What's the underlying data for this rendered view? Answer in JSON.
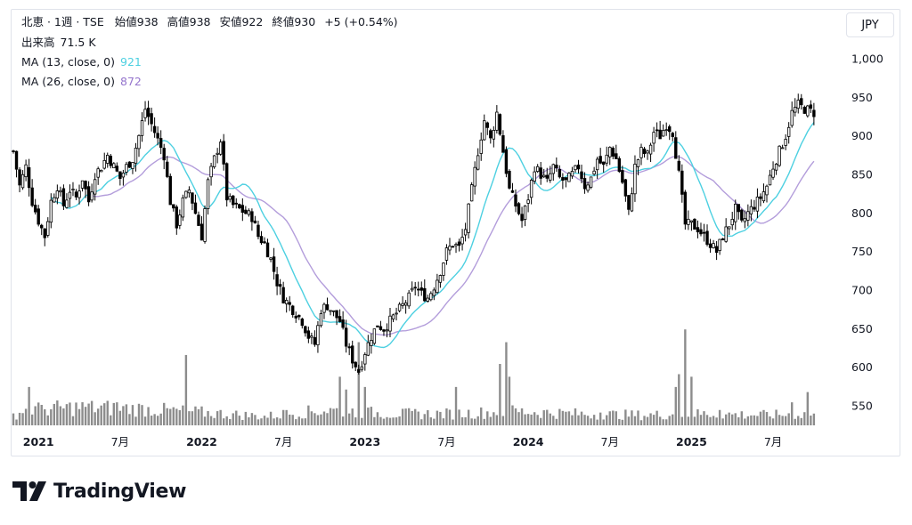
{
  "header": {
    "symbol_line": "北恵 · 1週 · TSE",
    "open_label": "始値",
    "open": "938",
    "high_label": "高値",
    "high": "938",
    "low_label": "安値",
    "low": "922",
    "close_label": "終値",
    "close": "930",
    "change": "+5 (+0.54%)",
    "volume_label": "出来高",
    "volume": "71.5 K",
    "ma1_label": "MA (13, close, 0)",
    "ma1_value": "921",
    "ma2_label": "MA (26, close, 0)",
    "ma2_value": "872"
  },
  "currency_button": "JPY",
  "brand": {
    "name": "TradingView"
  },
  "colors": {
    "up": "#ffffff",
    "down": "#000000",
    "outline": "#000000",
    "ma1": "#4dd0e1",
    "ma2": "#b39ddb",
    "volume": "#8c8c8c",
    "text": "#131722"
  },
  "chart_data": {
    "type": "candlestick",
    "timeframe": "1W",
    "yaxis": {
      "ticks": [
        "1,000",
        "950",
        "900",
        "850",
        "800",
        "750",
        "700",
        "650",
        "600",
        "550"
      ],
      "tick_values": [
        1000,
        950,
        900,
        850,
        800,
        750,
        700,
        650,
        600,
        550
      ],
      "range": [
        520,
        1010
      ]
    },
    "xaxis": {
      "ticks": [
        {
          "label": "2021",
          "bold": true,
          "index": 8
        },
        {
          "label": "7月",
          "bold": false,
          "index": 34
        },
        {
          "label": "2022",
          "bold": true,
          "index": 60
        },
        {
          "label": "7月",
          "bold": false,
          "index": 86
        },
        {
          "label": "2023",
          "bold": true,
          "index": 112
        },
        {
          "label": "7月",
          "bold": false,
          "index": 138
        },
        {
          "label": "2024",
          "bold": true,
          "index": 164
        },
        {
          "label": "7月",
          "bold": false,
          "index": 190
        },
        {
          "label": "2025",
          "bold": true,
          "index": 216
        },
        {
          "label": "7月",
          "bold": false,
          "index": 242
        }
      ]
    },
    "keypoints": [
      [
        0,
        880
      ],
      [
        2,
        835
      ],
      [
        4,
        860
      ],
      [
        6,
        815
      ],
      [
        8,
        790
      ],
      [
        10,
        770
      ],
      [
        12,
        815
      ],
      [
        14,
        835
      ],
      [
        16,
        810
      ],
      [
        18,
        830
      ],
      [
        20,
        820
      ],
      [
        22,
        845
      ],
      [
        24,
        815
      ],
      [
        26,
        850
      ],
      [
        28,
        860
      ],
      [
        30,
        875
      ],
      [
        32,
        860
      ],
      [
        34,
        845
      ],
      [
        36,
        860
      ],
      [
        38,
        870
      ],
      [
        40,
        900
      ],
      [
        42,
        935
      ],
      [
        44,
        915
      ],
      [
        46,
        895
      ],
      [
        48,
        875
      ],
      [
        50,
        815
      ],
      [
        52,
        785
      ],
      [
        54,
        815
      ],
      [
        56,
        830
      ],
      [
        58,
        800
      ],
      [
        60,
        770
      ],
      [
        62,
        840
      ],
      [
        64,
        870
      ],
      [
        66,
        895
      ],
      [
        68,
        820
      ],
      [
        70,
        810
      ],
      [
        72,
        805
      ],
      [
        74,
        800
      ],
      [
        76,
        795
      ],
      [
        78,
        770
      ],
      [
        80,
        760
      ],
      [
        82,
        740
      ],
      [
        84,
        710
      ],
      [
        86,
        690
      ],
      [
        88,
        680
      ],
      [
        90,
        670
      ],
      [
        92,
        660
      ],
      [
        94,
        640
      ],
      [
        96,
        630
      ],
      [
        98,
        675
      ],
      [
        100,
        680
      ],
      [
        102,
        670
      ],
      [
        104,
        660
      ],
      [
        106,
        630
      ],
      [
        108,
        610
      ],
      [
        110,
        595
      ],
      [
        112,
        620
      ],
      [
        114,
        640
      ],
      [
        116,
        655
      ],
      [
        118,
        650
      ],
      [
        120,
        660
      ],
      [
        122,
        670
      ],
      [
        124,
        680
      ],
      [
        126,
        690
      ],
      [
        128,
        705
      ],
      [
        130,
        695
      ],
      [
        132,
        690
      ],
      [
        134,
        705
      ],
      [
        136,
        725
      ],
      [
        138,
        750
      ],
      [
        140,
        760
      ],
      [
        142,
        755
      ],
      [
        144,
        780
      ],
      [
        146,
        830
      ],
      [
        148,
        880
      ],
      [
        150,
        920
      ],
      [
        152,
        895
      ],
      [
        154,
        930
      ],
      [
        156,
        880
      ],
      [
        158,
        830
      ],
      [
        160,
        810
      ],
      [
        162,
        790
      ],
      [
        164,
        820
      ],
      [
        166,
        860
      ],
      [
        168,
        850
      ],
      [
        170,
        840
      ],
      [
        172,
        860
      ],
      [
        174,
        845
      ],
      [
        176,
        840
      ],
      [
        178,
        850
      ],
      [
        180,
        860
      ],
      [
        182,
        835
      ],
      [
        184,
        845
      ],
      [
        186,
        870
      ],
      [
        188,
        860
      ],
      [
        190,
        885
      ],
      [
        192,
        870
      ],
      [
        194,
        840
      ],
      [
        196,
        800
      ],
      [
        198,
        860
      ],
      [
        200,
        880
      ],
      [
        202,
        875
      ],
      [
        204,
        905
      ],
      [
        206,
        900
      ],
      [
        208,
        915
      ],
      [
        210,
        905
      ],
      [
        212,
        850
      ],
      [
        214,
        785
      ],
      [
        216,
        785
      ],
      [
        218,
        780
      ],
      [
        220,
        770
      ],
      [
        222,
        760
      ],
      [
        224,
        750
      ],
      [
        226,
        770
      ],
      [
        228,
        785
      ],
      [
        230,
        805
      ],
      [
        232,
        785
      ],
      [
        234,
        800
      ],
      [
        236,
        810
      ],
      [
        238,
        820
      ],
      [
        240,
        835
      ],
      [
        242,
        860
      ],
      [
        244,
        880
      ],
      [
        246,
        900
      ],
      [
        248,
        930
      ],
      [
        250,
        940
      ],
      [
        252,
        935
      ],
      [
        254,
        932
      ],
      [
        255,
        930
      ]
    ],
    "volume_keypoints": [
      [
        0,
        8
      ],
      [
        4,
        12
      ],
      [
        20,
        14
      ],
      [
        40,
        13
      ],
      [
        60,
        10
      ],
      [
        80,
        7
      ],
      [
        100,
        12
      ],
      [
        120,
        9
      ],
      [
        140,
        9
      ],
      [
        160,
        11
      ],
      [
        180,
        9
      ],
      [
        200,
        8
      ],
      [
        220,
        9
      ],
      [
        240,
        8
      ],
      [
        255,
        9
      ]
    ],
    "volume_spikes": [
      [
        5,
        30
      ],
      [
        9,
        16
      ],
      [
        24,
        17
      ],
      [
        33,
        18
      ],
      [
        55,
        55
      ],
      [
        86,
        12
      ],
      [
        104,
        38
      ],
      [
        106,
        28
      ],
      [
        110,
        65
      ],
      [
        112,
        30
      ],
      [
        141,
        30
      ],
      [
        155,
        48
      ],
      [
        157,
        65
      ],
      [
        158,
        38
      ],
      [
        187,
        10
      ],
      [
        211,
        30
      ],
      [
        212,
        40
      ],
      [
        214,
        75
      ],
      [
        216,
        38
      ],
      [
        225,
        12
      ],
      [
        248,
        18
      ],
      [
        253,
        26
      ]
    ],
    "volume_max": 80,
    "ma_periods": [
      13,
      26
    ]
  }
}
